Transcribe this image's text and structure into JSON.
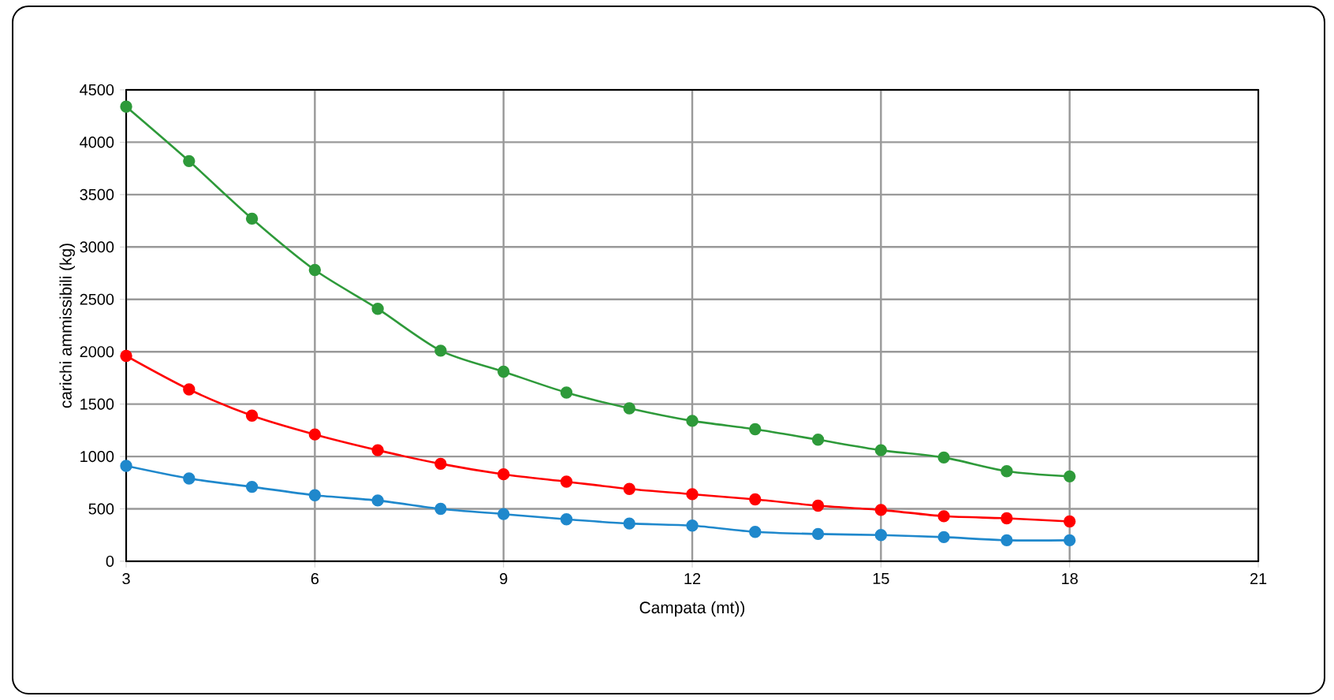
{
  "chart_data": {
    "type": "line",
    "xlabel": "Campata (mt))",
    "ylabel": "carichi ammissibili (kg)",
    "x": [
      3,
      4,
      5,
      6,
      7,
      8,
      9,
      10,
      11,
      12,
      13,
      14,
      15,
      16,
      17,
      18
    ],
    "series": [
      {
        "color": "#2e9a3a",
        "values": [
          4340,
          3820,
          3270,
          2780,
          2410,
          2010,
          1810,
          1610,
          1460,
          1340,
          1260,
          1160,
          1060,
          990,
          860,
          810
        ]
      },
      {
        "color": "#ff0000",
        "values": [
          1960,
          1640,
          1390,
          1210,
          1060,
          930,
          830,
          760,
          690,
          640,
          590,
          530,
          490,
          430,
          410,
          380
        ]
      },
      {
        "color": "#1f88cc",
        "values": [
          910,
          790,
          710,
          630,
          580,
          500,
          450,
          400,
          360,
          340,
          280,
          260,
          250,
          230,
          200,
          200
        ]
      }
    ],
    "xlim": [
      3,
      21
    ],
    "xticks": [
      3,
      6,
      9,
      12,
      15,
      18,
      21
    ],
    "ylim": [
      0,
      4500
    ],
    "yticks": [
      0,
      500,
      1000,
      1500,
      2000,
      2500,
      3000,
      3500,
      4000,
      4500
    ],
    "grid": true,
    "marker": "circle",
    "line_style": "solid"
  }
}
